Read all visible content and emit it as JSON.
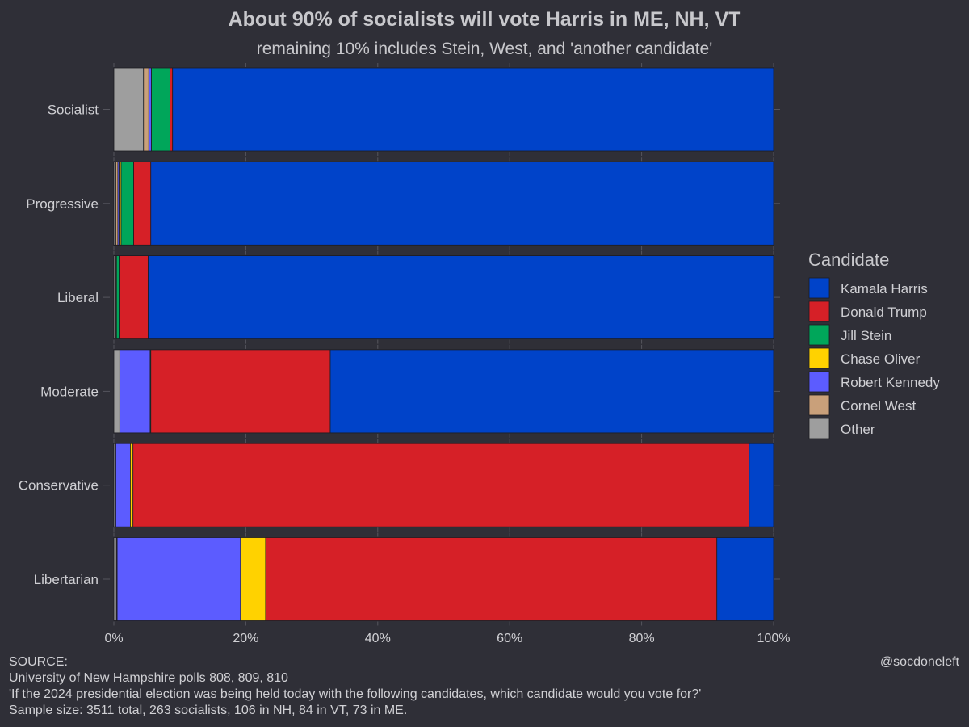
{
  "chart_data": {
    "type": "bar",
    "orientation": "horizontal",
    "stacked": true,
    "title": "About 90% of socialists will vote Harris in ME, NH, VT",
    "subtitle": "remaining 10% includes Stein, West, and 'another candidate'",
    "xlim": [
      0,
      100
    ],
    "x_ticks": [
      "0%",
      "20%",
      "40%",
      "60%",
      "80%",
      "100%"
    ],
    "x_tick_values": [
      0,
      20,
      40,
      60,
      80,
      100
    ],
    "categories": [
      "Socialist",
      "Progressive",
      "Liberal",
      "Moderate",
      "Conservative",
      "Libertarian"
    ],
    "legend_title": "Candidate",
    "legend_position": "right",
    "series": [
      {
        "name": "Other",
        "color": "#9e9e9e",
        "values": [
          4.5,
          0.3,
          0.3,
          0.9,
          0.2,
          0.4
        ]
      },
      {
        "name": "Cornel West",
        "color": "#c9a07a",
        "values": [
          0.8,
          0.3,
          0.1,
          0.0,
          0.1,
          0.1
        ]
      },
      {
        "name": "Robert Kennedy",
        "color": "#5c5cff",
        "values": [
          0.4,
          0.2,
          0.0,
          4.6,
          2.2,
          18.7
        ]
      },
      {
        "name": "Chase Oliver",
        "color": "#ffd200",
        "values": [
          0.0,
          0.3,
          0.0,
          0.0,
          0.4,
          3.8
        ]
      },
      {
        "name": "Jill Stein",
        "color": "#00a65a",
        "values": [
          2.8,
          1.9,
          0.4,
          0.1,
          0.0,
          0.0
        ]
      },
      {
        "name": "Donald Trump",
        "color": "#d62027",
        "values": [
          0.4,
          2.6,
          4.4,
          27.2,
          93.4,
          68.4
        ]
      },
      {
        "name": "Kamala Harris",
        "color": "#0043c9",
        "values": [
          91.1,
          94.4,
          94.8,
          67.2,
          3.7,
          8.6
        ]
      }
    ],
    "legend_order": [
      "Kamala Harris",
      "Donald Trump",
      "Jill Stein",
      "Chase Oliver",
      "Robert Kennedy",
      "Cornel West",
      "Other"
    ]
  },
  "footer": {
    "source_label": "SOURCE:",
    "source_line": "University of New Hampshire polls 808, 809, 810",
    "question": "'If the 2024 presidential election was being held today with the following candidates, which candidate would you vote for?'",
    "sample": "Sample size: 3511 total, 263 socialists, 106 in NH, 84 in VT, 73 in ME.",
    "handle": "@socdoneleft"
  }
}
